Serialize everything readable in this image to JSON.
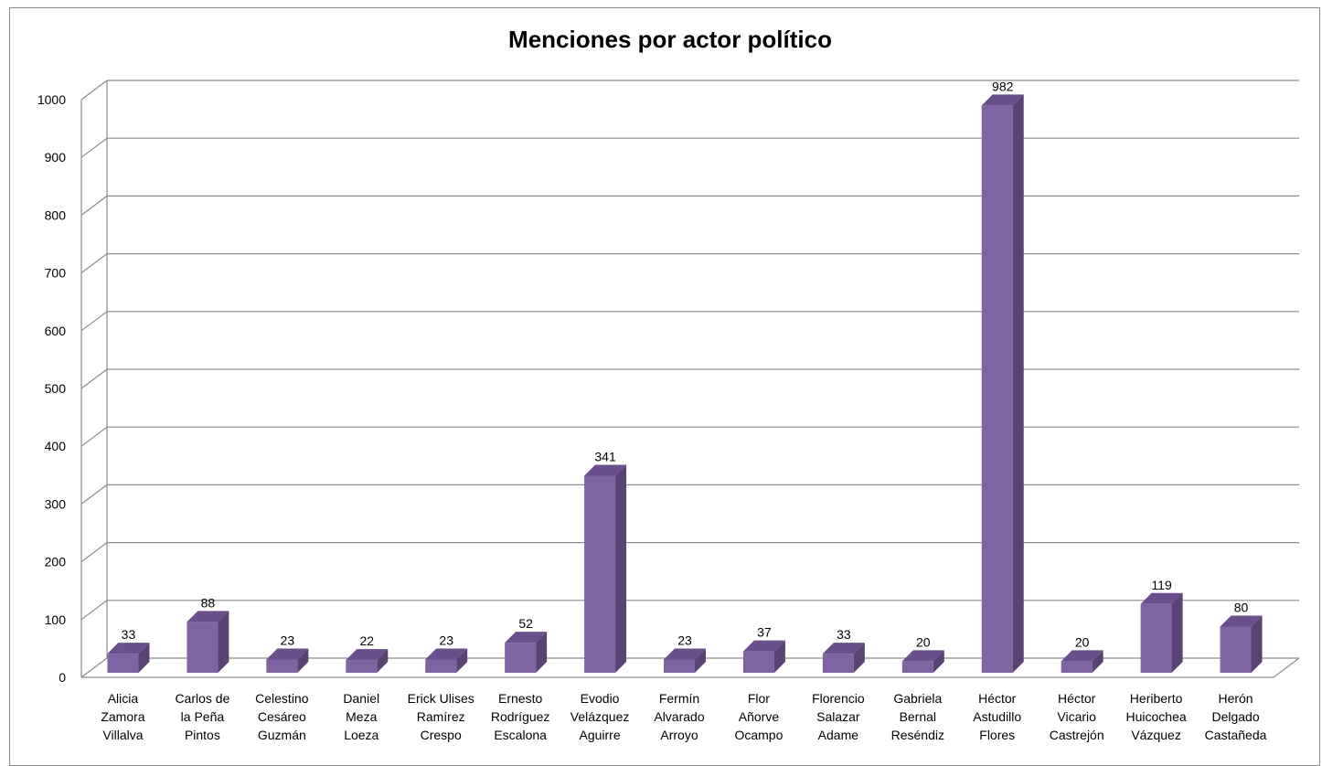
{
  "chart_data": {
    "type": "bar",
    "title": "Menciones por actor político",
    "xlabel": "",
    "ylabel": "",
    "ylim": [
      0,
      1000
    ],
    "yticks": [
      0,
      100,
      200,
      300,
      400,
      500,
      600,
      700,
      800,
      900,
      1000
    ],
    "grid": true,
    "legend": "none",
    "three_d": true,
    "bar_color": "#8064a2",
    "bar_side_color": "#5a4373",
    "bar_top_color": "#6a4f8c",
    "categories": [
      [
        "Alicia",
        "Zamora",
        "Villalva"
      ],
      [
        "Carlos de",
        "la Peña",
        "Pintos"
      ],
      [
        "Celestino",
        "Cesáreo",
        "Guzmán"
      ],
      [
        "Daniel",
        "Meza",
        "Loeza"
      ],
      [
        "Erick Ulises",
        "Ramírez",
        "Crespo"
      ],
      [
        "Ernesto",
        "Rodríguez",
        "Escalona"
      ],
      [
        "Evodio",
        "Velázquez",
        "Aguirre"
      ],
      [
        "Fermín",
        "Alvarado",
        "Arroyo"
      ],
      [
        "Flor",
        "Añorve",
        "Ocampo"
      ],
      [
        "Florencio",
        "Salazar",
        "Adame"
      ],
      [
        "Gabriela",
        "Bernal",
        "Reséndiz"
      ],
      [
        "Héctor",
        "Astudillo",
        "Flores"
      ],
      [
        "Héctor",
        "Vicario",
        "Castrejón"
      ],
      [
        "Heriberto",
        "Huicochea",
        "Vázquez"
      ],
      [
        "Herón",
        "Delgado",
        "Castañeda"
      ]
    ],
    "values": [
      33,
      88,
      23,
      22,
      23,
      52,
      341,
      23,
      37,
      33,
      20,
      982,
      20,
      119,
      80
    ],
    "data_labels": [
      "33",
      "88",
      "23",
      "22",
      "23",
      "52",
      "341",
      "23",
      "37",
      "33",
      "20",
      "982",
      "20",
      "119",
      "80"
    ]
  }
}
